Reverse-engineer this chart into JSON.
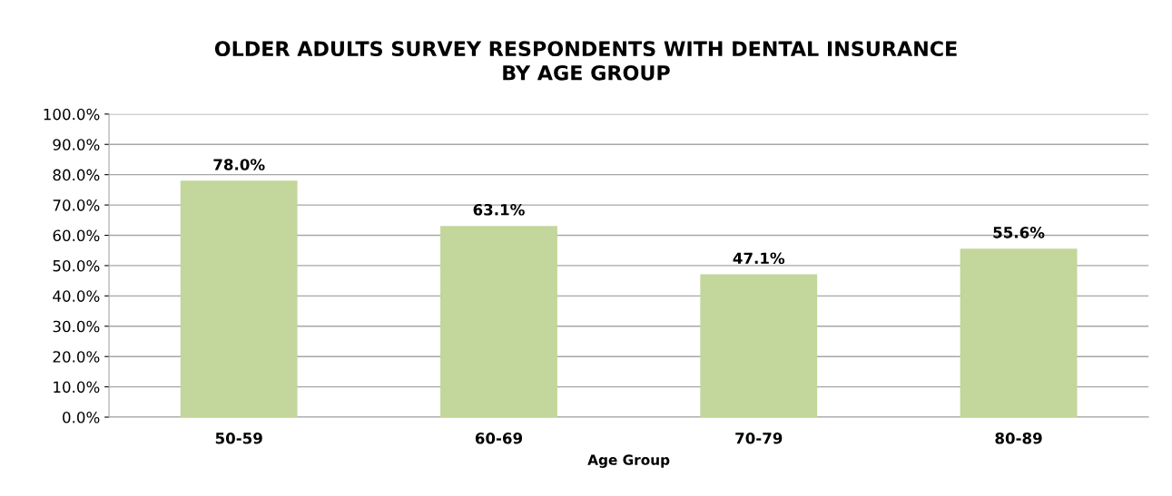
{
  "chart_data": {
    "type": "bar",
    "title": "OLDER ADULTS SURVEY RESPONDENTS WITH DENTAL INSURANCE\nBY AGE GROUP",
    "xlabel": "Age Group",
    "categories": [
      "50-59",
      "60-69",
      "70-79",
      "80-89"
    ],
    "values": [
      78.0,
      63.1,
      47.1,
      55.6
    ],
    "value_labels": [
      "78.0%",
      "63.1%",
      "47.1%",
      "55.6%"
    ],
    "color": "#c3d69b",
    "ylim": [
      0,
      100
    ],
    "yticks": [
      {
        "value": 0,
        "label": "0.0%"
      },
      {
        "value": 10,
        "label": "10.0%"
      },
      {
        "value": 20,
        "label": "20.0%"
      },
      {
        "value": 30,
        "label": "30.0%"
      },
      {
        "value": 40,
        "label": "40.0%"
      },
      {
        "value": 50,
        "label": "50.0%"
      },
      {
        "value": 60,
        "label": "60.0%"
      },
      {
        "value": 70,
        "label": "70.0%"
      },
      {
        "value": 80,
        "label": "80.0%"
      },
      {
        "value": 90,
        "label": "90.0%"
      },
      {
        "value": 100,
        "label": "100.0%"
      }
    ],
    "grid": "y"
  }
}
